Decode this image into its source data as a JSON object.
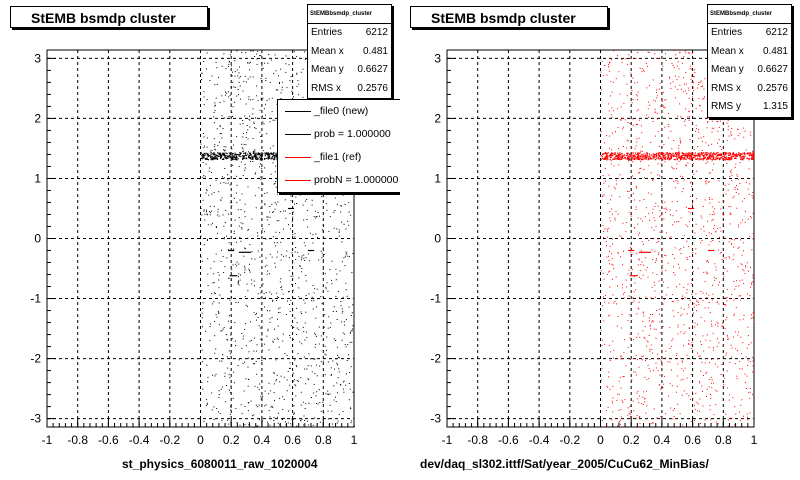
{
  "chart_data": [
    {
      "type": "scatter",
      "title": "StEMB bsmdp cluster",
      "xlabel": "st_physics_6080011_raw_1020004",
      "ylabel": "",
      "xlim": [
        -1,
        1
      ],
      "ylim": [
        -3.14,
        3.14
      ],
      "x_ticks": [
        "-1",
        "-0.8",
        "-0.6",
        "-0.4",
        "-0.2",
        "0",
        "0.2",
        "0.4",
        "0.6",
        "0.8",
        "1"
      ],
      "y_ticks": [
        "-3",
        "-2",
        "-1",
        "0",
        "1",
        "2",
        "3"
      ],
      "grid": true,
      "marker_color": "#000000",
      "stats": {
        "name": "StEMBbsmdp_cluster",
        "rows": [
          {
            "label": "Entries",
            "value": "6212"
          },
          {
            "label": "Mean x",
            "value": "0.481"
          },
          {
            "label": "Mean y",
            "value": "0.6627"
          },
          {
            "label": "RMS x",
            "value": "0.2576"
          }
        ]
      },
      "legend": {
        "placement": "top-right",
        "entries": [
          {
            "label": "_file0 (new)",
            "color": "#000000"
          },
          {
            "label": "prob = 1.000000",
            "color": "#000000"
          },
          {
            "label": "_file1 (ref)",
            "color": "#ff0000"
          },
          {
            "label": "probN = 1.000000",
            "color": "#ff0000"
          }
        ]
      },
      "points_sample": {
        "x_range": [
          0.0,
          1.0
        ],
        "y_range": [
          -3.14,
          3.14
        ],
        "count": 6212,
        "dense_band_y": 1.38,
        "short_segments": [
          {
            "x": [
              0.18,
              0.22
            ],
            "y": -0.2
          },
          {
            "x": [
              0.25,
              0.33
            ],
            "y": -0.23
          },
          {
            "x": [
              0.19,
              0.24
            ],
            "y": -0.62
          },
          {
            "x": [
              0.57,
              0.61
            ],
            "y": 0.5
          },
          {
            "x": [
              0.7,
              0.74
            ],
            "y": -0.2
          }
        ]
      }
    },
    {
      "type": "scatter",
      "title": "StEMB bsmdp cluster",
      "xlabel": "dev/daq_sl302.ittf/Sat/year_2005/CuCu62_MinBias/",
      "ylabel": "",
      "xlim": [
        -1,
        1
      ],
      "ylim": [
        -3.14,
        3.14
      ],
      "x_ticks": [
        "-1",
        "-0.8",
        "-0.6",
        "-0.4",
        "-0.2",
        "0",
        "0.2",
        "0.4",
        "0.6",
        "0.8",
        "1"
      ],
      "y_ticks": [
        "-3",
        "-2",
        "-1",
        "0",
        "1",
        "2",
        "3"
      ],
      "grid": true,
      "marker_color": "#ff0000",
      "stats": {
        "name": "StEMBbsmdp_cluster",
        "rows": [
          {
            "label": "Entries",
            "value": "6212"
          },
          {
            "label": "Mean x",
            "value": "0.481"
          },
          {
            "label": "Mean y",
            "value": "0.6627"
          },
          {
            "label": "RMS x",
            "value": "0.2576"
          },
          {
            "label": "RMS y",
            "value": "1.315"
          }
        ]
      },
      "points_sample": {
        "x_range": [
          0.0,
          1.0
        ],
        "y_range": [
          -3.14,
          3.14
        ],
        "count": 6212,
        "dense_band_y": 1.38,
        "short_segments": [
          {
            "x": [
              0.18,
              0.22
            ],
            "y": -0.2
          },
          {
            "x": [
              0.25,
              0.33
            ],
            "y": -0.23
          },
          {
            "x": [
              0.19,
              0.24
            ],
            "y": -0.62
          },
          {
            "x": [
              0.57,
              0.61
            ],
            "y": 0.5
          },
          {
            "x": [
              0.7,
              0.74
            ],
            "y": -0.2
          }
        ]
      }
    }
  ]
}
